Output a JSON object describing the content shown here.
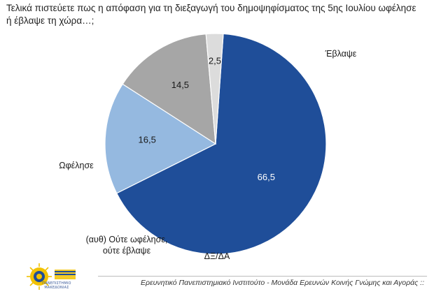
{
  "question": "Τελικά πιστεύετε πως η απόφαση για τη διεξαγωγή του δημοψηφίσματος της 5ης Ιουλίου ωφέλησε ή έβλαψε τη χώρα…;",
  "chart_data": {
    "type": "pie",
    "title": "Τελικά πιστεύετε πως η απόφαση για τη διεξαγωγή του δημοψηφίσματος της 5ης Ιουλίου ωφέλησε ή έβλαψε τη χώρα…;",
    "slices": [
      {
        "label": "Έβλαψε",
        "value": 66.5,
        "display": "66,5",
        "color": "#1f4e99"
      },
      {
        "label": "Ωφέλησε",
        "value": 16.5,
        "display": "16,5",
        "color": "#95b9e0"
      },
      {
        "label": "(αυθ) Ούτε ωφέλησε, ούτε έβλαψε",
        "label_lines": [
          "(αυθ) Ούτε ωφέλησε,",
          "ούτε έβλαψε"
        ],
        "value": 14.5,
        "display": "14,5",
        "color": "#a6a6a6"
      },
      {
        "label": "ΔΞ/ΔΑ",
        "value": 2.5,
        "display": "2,5",
        "color": "#dcdcdc"
      }
    ],
    "legend": "none"
  },
  "logo_text": "ΠΑΝΕΠΙΣΤΗΜΙΟ ΜΑΚΕΔΟΝΙΑΣ",
  "footer": "Ερευνητικό Πανεπιστημιακό Ινστιτούτο - Μονάδα Ερευνών Κοινής Γνώμης και Αγοράς ::"
}
